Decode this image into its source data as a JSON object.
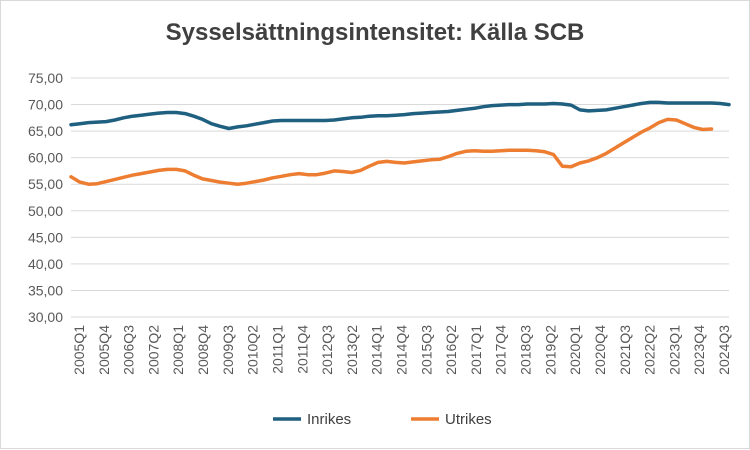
{
  "chart_data": {
    "type": "line",
    "title": "Sysselsättningsintensitet: Källa SCB",
    "xlabel": "",
    "ylabel": "",
    "ylim": [
      30,
      75
    ],
    "yticks": [
      "30,00",
      "35,00",
      "40,00",
      "45,00",
      "50,00",
      "55,00",
      "60,00",
      "65,00",
      "70,00",
      "75,00"
    ],
    "x_tick_labels": [
      "2005Q1",
      "2005Q4",
      "2006Q3",
      "2007Q2",
      "2008Q1",
      "2008Q4",
      "2009Q3",
      "2010Q2",
      "2011Q1",
      "2011Q4",
      "2012Q3",
      "2013Q2",
      "2014Q1",
      "2014Q4",
      "2015Q3",
      "2016Q2",
      "2017Q1",
      "2017Q4",
      "2018Q3",
      "2019Q2",
      "2020Q1",
      "2020Q4",
      "2021Q3",
      "2022Q2",
      "2023Q1",
      "2023Q4",
      "2024Q3"
    ],
    "grid": "horizontal",
    "legend_position": "bottom",
    "series": [
      {
        "name": "Inrikes",
        "color": "#1f5f7f",
        "values": [
          66.2,
          66.4,
          66.6,
          66.7,
          66.8,
          67.1,
          67.5,
          67.8,
          68.0,
          68.2,
          68.4,
          68.5,
          68.5,
          68.3,
          67.8,
          67.2,
          66.4,
          65.9,
          65.5,
          65.8,
          66.0,
          66.3,
          66.6,
          66.9,
          67.0,
          67.0,
          67.0,
          67.0,
          67.0,
          67.0,
          67.1,
          67.3,
          67.5,
          67.6,
          67.8,
          67.9,
          67.9,
          68.0,
          68.1,
          68.3,
          68.4,
          68.5,
          68.6,
          68.7,
          68.9,
          69.1,
          69.3,
          69.6,
          69.8,
          69.9,
          70.0,
          70.0,
          70.1,
          70.1,
          70.1,
          70.2,
          70.1,
          69.9,
          69.0,
          68.8,
          68.9,
          69.0,
          69.3,
          69.6,
          69.9,
          70.2,
          70.4,
          70.4,
          70.3,
          70.3,
          70.3,
          70.3,
          70.3,
          70.3,
          70.2,
          70.0
        ]
      },
      {
        "name": "Utrikes",
        "color": "#ed7d31",
        "values": [
          56.4,
          55.4,
          55.0,
          55.1,
          55.5,
          55.9,
          56.3,
          56.7,
          57.0,
          57.3,
          57.6,
          57.8,
          57.8,
          57.5,
          56.7,
          56.0,
          55.7,
          55.4,
          55.2,
          55.0,
          55.2,
          55.5,
          55.8,
          56.2,
          56.5,
          56.8,
          57.0,
          56.8,
          56.8,
          57.1,
          57.5,
          57.4,
          57.2,
          57.6,
          58.4,
          59.1,
          59.3,
          59.1,
          59.0,
          59.2,
          59.4,
          59.6,
          59.7,
          60.2,
          60.8,
          61.2,
          61.3,
          61.2,
          61.2,
          61.3,
          61.4,
          61.4,
          61.4,
          61.3,
          61.1,
          60.6,
          58.4,
          58.3,
          59.0,
          59.4,
          60.0,
          60.8,
          61.8,
          62.8,
          63.8,
          64.8,
          65.6,
          66.6,
          67.2,
          67.1,
          66.4,
          65.7,
          65.3,
          65.4
        ]
      }
    ]
  }
}
